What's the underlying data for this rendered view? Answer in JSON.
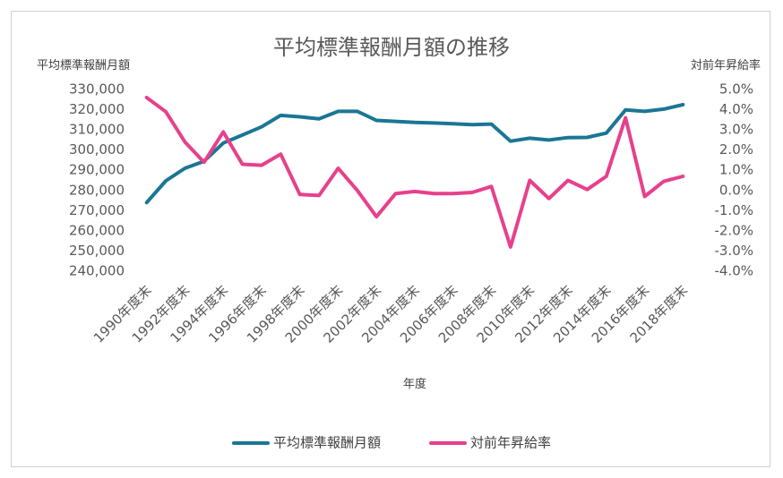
{
  "chart_data": {
    "type": "line",
    "title": "平均標準報酬月額の推移",
    "xlabel": "年度",
    "ylabel_left": "平均標準報酬月額",
    "ylabel_right": "対前年昇給率",
    "categories": [
      "1990年度末",
      "1991年度末",
      "1992年度末",
      "1993年度末",
      "1994年度末",
      "1995年度末",
      "1996年度末",
      "1997年度末",
      "1998年度末",
      "1999年度末",
      "2000年度末",
      "2001年度末",
      "2002年度末",
      "2003年度末",
      "2004年度末",
      "2005年度末",
      "2006年度末",
      "2007年度末",
      "2008年度末",
      "2009年度末",
      "2010年度末",
      "2011年度末",
      "2012年度末",
      "2013年度末",
      "2014年度末",
      "2015年度末",
      "2016年度末",
      "2017年度末",
      "2018年度末"
    ],
    "x_tick_labels": [
      "1990年度末",
      "1992年度末",
      "1994年度末",
      "1996年度末",
      "1998年度末",
      "2000年度末",
      "2002年度末",
      "2004年度末",
      "2006年度末",
      "2008年度末",
      "2010年度末",
      "2012年度末",
      "2014年度末",
      "2016年度末",
      "2018年度末"
    ],
    "y_left": {
      "min": 240000,
      "max": 330000,
      "step": 10000,
      "tick_labels": [
        "330,000",
        "320,000",
        "310,000",
        "300,000",
        "290,000",
        "280,000",
        "270,000",
        "260,000",
        "250,000",
        "240,000"
      ]
    },
    "y_right": {
      "min": -4.0,
      "max": 5.0,
      "step": 1.0,
      "tick_labels": [
        "5.0%",
        "4.0%",
        "3.0%",
        "2.0%",
        "1.0%",
        "0.0%",
        "-1.0%",
        "-2.0%",
        "-3.0%",
        "-4.0%"
      ]
    },
    "series": [
      {
        "name": "平均標準報酬月額",
        "axis": "left",
        "color": "#1b7694",
        "values": [
          274000,
          284800,
          291000,
          294500,
          303500,
          307500,
          311500,
          317200,
          316500,
          315500,
          319200,
          319200,
          314700,
          314200,
          313700,
          313400,
          313000,
          312600,
          312900,
          304400,
          305900,
          305000,
          306200,
          306300,
          308400,
          319900,
          319200,
          320300,
          322500
        ]
      },
      {
        "name": "対前年昇給率",
        "axis": "right",
        "color": "#e7408c",
        "values": [
          4.6,
          3.9,
          2.4,
          1.4,
          2.9,
          1.3,
          1.25,
          1.8,
          -0.2,
          -0.25,
          1.1,
          0.0,
          -1.3,
          -0.15,
          -0.05,
          -0.15,
          -0.15,
          -0.1,
          0.2,
          -2.8,
          0.5,
          -0.4,
          0.5,
          0.05,
          0.7,
          3.6,
          -0.3,
          0.45,
          0.7
        ]
      }
    ],
    "legend_position": "bottom",
    "grid": false
  }
}
